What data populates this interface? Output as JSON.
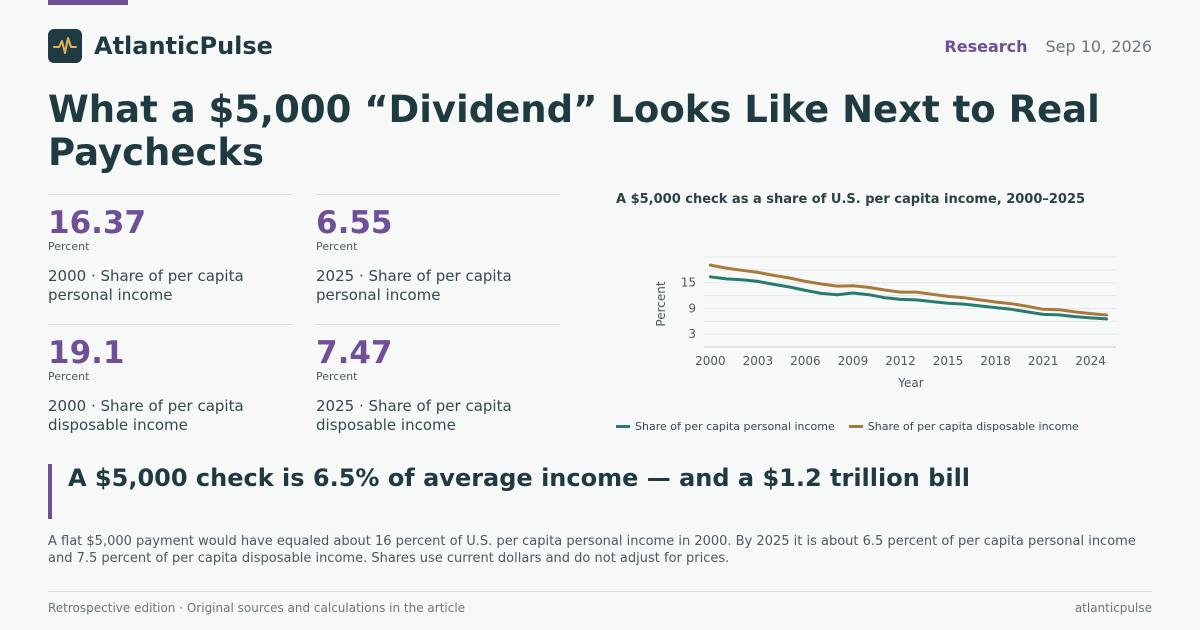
{
  "brand": {
    "name": "AtlanticPulse",
    "logo_icon": "pulse-icon",
    "accent": "#6f4f96",
    "dark": "#1f3a40"
  },
  "header": {
    "section": "Research",
    "date": "Sep 10, 2026"
  },
  "headline": "What a $5,000 “Dividend” Looks Like Next to Real Paychecks",
  "stats": [
    {
      "value": "16.37",
      "unit": "Percent",
      "desc": "2000 · Share of per capita personal income"
    },
    {
      "value": "6.55",
      "unit": "Percent",
      "desc": "2025 · Share of per capita personal income"
    },
    {
      "value": "19.1",
      "unit": "Percent",
      "desc": "2000 · Share of per capita disposable income"
    },
    {
      "value": "7.47",
      "unit": "Percent",
      "desc": "2025 · Share of per capita disposable income"
    }
  ],
  "chart_title": "A $5,000 check as a share of U.S. per capita income, 2000–2025",
  "chart_data": {
    "type": "line",
    "title": "A $5,000 check as a share of U.S. per capita income, 2000–2025",
    "xlabel": "Year",
    "ylabel": "Percent",
    "x": [
      2000,
      2001,
      2002,
      2003,
      2004,
      2005,
      2006,
      2007,
      2008,
      2009,
      2010,
      2011,
      2012,
      2013,
      2014,
      2015,
      2016,
      2017,
      2018,
      2019,
      2020,
      2021,
      2022,
      2023,
      2024,
      2025
    ],
    "xticks": [
      2000,
      2003,
      2006,
      2009,
      2012,
      2015,
      2018,
      2021,
      2024
    ],
    "yticks": [
      3,
      9,
      15
    ],
    "xlim": [
      1999.6,
      2025.6
    ],
    "ylim": [
      0,
      21
    ],
    "grid": true,
    "legend": "bottom",
    "series": [
      {
        "name": "Share of per capita personal income",
        "color": "#2a7b6f",
        "values": [
          16.37,
          15.9,
          15.7,
          15.3,
          14.6,
          14.0,
          13.2,
          12.5,
          12.2,
          12.6,
          12.2,
          11.5,
          11.1,
          11.0,
          10.6,
          10.2,
          10.0,
          9.6,
          9.2,
          8.8,
          8.2,
          7.6,
          7.5,
          7.1,
          6.8,
          6.55
        ]
      },
      {
        "name": "Share of per capita disposable income",
        "color": "#a87a3a",
        "values": [
          19.1,
          18.4,
          17.9,
          17.4,
          16.7,
          16.1,
          15.3,
          14.7,
          14.2,
          14.3,
          13.9,
          13.3,
          12.8,
          12.8,
          12.3,
          11.8,
          11.5,
          11.0,
          10.5,
          10.1,
          9.5,
          8.8,
          8.7,
          8.2,
          7.8,
          7.47
        ]
      }
    ]
  },
  "callout": "A $5,000 check is 6.5% of average income — and a $1.2 trillion bill",
  "body": "A flat $5,000 payment would have equaled about 16 percent of U.S. per capita personal income in 2000. By 2025 it is about 6.5 percent of per capita personal income and 7.5 percent of per capita disposable income. Shares use current dollars and do not adjust for prices.",
  "footer": {
    "left": "Retrospective edition · Original sources and calculations in the article",
    "right": "atlanticpulse"
  }
}
